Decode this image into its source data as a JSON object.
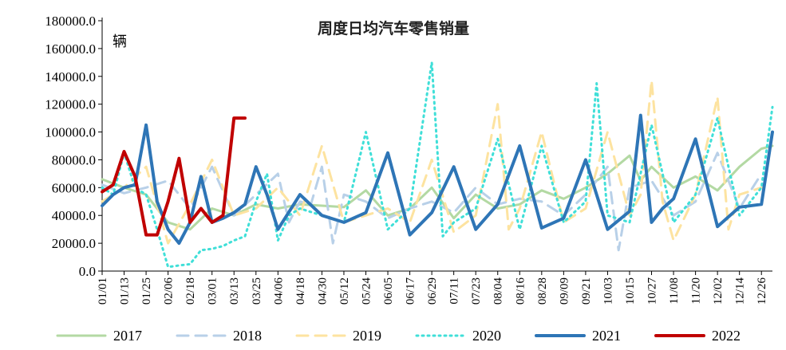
{
  "chart_data": {
    "type": "line",
    "title": "周度日均汽车零售销量",
    "ylabel": "辆",
    "xlabel": "",
    "ylim": [
      0,
      180000
    ],
    "y_ticks": [
      "0.0",
      "20000.0",
      "40000.0",
      "60000.0",
      "80000.0",
      "100000.0",
      "120000.0",
      "140000.0",
      "160000.0",
      "180000.0"
    ],
    "y_tick_values": [
      0,
      20000,
      40000,
      60000,
      80000,
      100000,
      120000,
      140000,
      160000,
      180000
    ],
    "x_tick_labels": [
      "01/01",
      "01/13",
      "01/25",
      "02/06",
      "02/18",
      "03/01",
      "03/13",
      "03/25",
      "04/06",
      "04/18",
      "04/30",
      "05/12",
      "05/24",
      "06/05",
      "06/17",
      "06/29",
      "07/11",
      "07/23",
      "08/04",
      "08/16",
      "08/28",
      "09/09",
      "09/21",
      "10/03",
      "10/15",
      "10/27",
      "11/08",
      "11/20",
      "12/02",
      "12/14",
      "12/26"
    ],
    "x_tick_index": [
      0,
      2,
      4,
      6,
      8,
      10,
      12,
      14,
      16,
      18,
      20,
      22,
      24,
      26,
      28,
      30,
      32,
      34,
      36,
      38,
      40,
      42,
      44,
      46,
      48,
      50,
      52,
      54,
      56,
      58,
      60
    ],
    "x_count": 62,
    "grid": false,
    "legend_position": "bottom",
    "series": [
      {
        "name": "2017",
        "color": "#b3d9a3",
        "dash": "solid",
        "width": 3,
        "x": [
          0,
          2,
          4,
          6,
          8,
          10,
          12,
          14,
          16,
          18,
          20,
          22,
          24,
          26,
          28,
          30,
          32,
          34,
          36,
          38,
          40,
          42,
          44,
          46,
          48,
          49,
          50,
          52,
          54,
          56,
          58,
          60,
          61
        ],
        "values": [
          66000,
          60000,
          55000,
          35000,
          30000,
          45000,
          40000,
          48000,
          45000,
          48000,
          47000,
          46000,
          58000,
          40000,
          45000,
          60000,
          38000,
          55000,
          45000,
          48000,
          58000,
          52000,
          60000,
          70000,
          83000,
          65000,
          75000,
          60000,
          68000,
          58000,
          75000,
          88000,
          90000
        ]
      },
      {
        "name": "2018",
        "color": "#b8d0e8",
        "dash": "dash",
        "width": 3,
        "x": [
          0,
          2,
          4,
          6,
          8,
          10,
          12,
          14,
          16,
          17,
          18,
          19,
          20,
          21,
          22,
          24,
          26,
          28,
          30,
          32,
          34,
          36,
          38,
          40,
          42,
          44,
          46,
          47,
          48,
          50,
          52,
          54,
          56,
          58,
          60
        ],
        "values": [
          62000,
          56000,
          60000,
          65000,
          45000,
          75000,
          40000,
          55000,
          70000,
          35000,
          50000,
          48000,
          75000,
          20000,
          55000,
          50000,
          38000,
          45000,
          50000,
          42000,
          60000,
          48000,
          52000,
          50000,
          40000,
          55000,
          75000,
          15000,
          60000,
          65000,
          40000,
          50000,
          85000,
          45000,
          70000
        ]
      },
      {
        "name": "2019",
        "color": "#fde3a0",
        "dash": "dash",
        "width": 3,
        "x": [
          0,
          2,
          4,
          6,
          8,
          10,
          12,
          14,
          16,
          18,
          20,
          22,
          24,
          26,
          28,
          30,
          32,
          34,
          36,
          37,
          38,
          40,
          42,
          44,
          46,
          48,
          49,
          50,
          51,
          52,
          54,
          56,
          57,
          58,
          60
        ],
        "values": [
          50000,
          60000,
          75000,
          20000,
          48000,
          80000,
          40000,
          45000,
          60000,
          40000,
          90000,
          35000,
          40000,
          45000,
          35000,
          80000,
          28000,
          40000,
          120000,
          30000,
          45000,
          100000,
          35000,
          45000,
          100000,
          40000,
          55000,
          137000,
          50000,
          22000,
          55000,
          125000,
          30000,
          55000,
          60000
        ]
      },
      {
        "name": "2020",
        "color": "#40dfd8",
        "dash": "dot",
        "width": 3,
        "x": [
          0,
          1,
          2,
          3,
          4,
          5,
          6,
          7,
          8,
          9,
          10,
          11,
          12,
          13,
          14,
          15,
          16,
          17,
          18,
          20,
          22,
          24,
          26,
          28,
          30,
          31,
          32,
          34,
          36,
          38,
          40,
          42,
          44,
          45,
          46,
          48,
          50,
          52,
          54,
          56,
          58,
          60,
          61
        ],
        "values": [
          60000,
          55000,
          85000,
          60000,
          55000,
          30000,
          3000,
          4000,
          5000,
          15000,
          16000,
          18000,
          22000,
          25000,
          50000,
          70000,
          22000,
          40000,
          45000,
          40000,
          35000,
          100000,
          30000,
          45000,
          150000,
          25000,
          35000,
          45000,
          95000,
          30000,
          90000,
          35000,
          50000,
          135000,
          40000,
          35000,
          105000,
          35000,
          55000,
          110000,
          40000,
          60000,
          118000
        ]
      },
      {
        "name": "2021",
        "color": "#2e75b6",
        "dash": "solid",
        "width": 4,
        "x": [
          0,
          1,
          2,
          3,
          4,
          5,
          6,
          7,
          8,
          9,
          10,
          11,
          12,
          13,
          14,
          15,
          16,
          18,
          20,
          22,
          24,
          26,
          28,
          30,
          32,
          34,
          36,
          38,
          40,
          42,
          44,
          46,
          48,
          49,
          50,
          51,
          52,
          54,
          56,
          58,
          60,
          61
        ],
        "values": [
          47000,
          55000,
          60000,
          62000,
          105000,
          50000,
          30000,
          20000,
          35000,
          68000,
          35000,
          38000,
          42000,
          48000,
          75000,
          55000,
          30000,
          55000,
          40000,
          35000,
          42000,
          85000,
          26000,
          42000,
          75000,
          30000,
          48000,
          90000,
          31000,
          38000,
          80000,
          30000,
          43000,
          112000,
          35000,
          45000,
          52000,
          95000,
          32000,
          46000,
          48000,
          100000
        ]
      },
      {
        "name": "2022",
        "color": "#c00000",
        "dash": "solid",
        "width": 4,
        "x": [
          0,
          1,
          2,
          3,
          4,
          5,
          6,
          7,
          8,
          9,
          10,
          11,
          12,
          13
        ],
        "values": [
          57000,
          62000,
          86000,
          68000,
          26000,
          26000,
          50000,
          81000,
          35000,
          45000,
          35000,
          40000,
          110000,
          110000
        ]
      }
    ]
  }
}
